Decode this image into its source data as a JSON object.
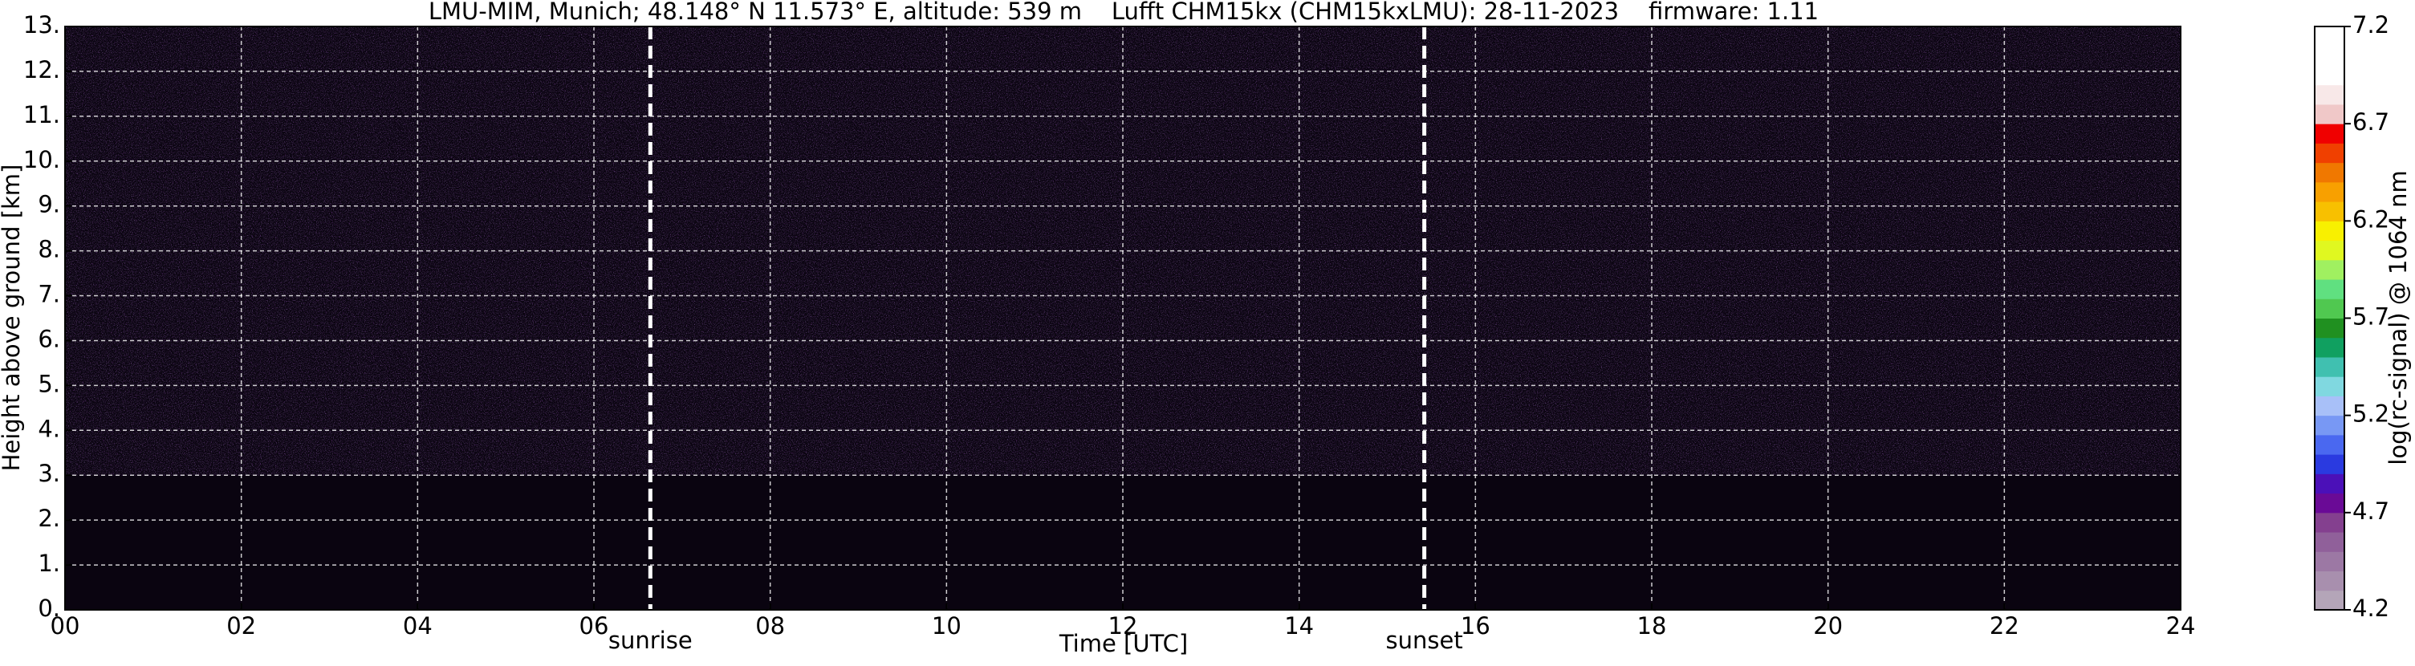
{
  "chart_data": {
    "type": "heatmap",
    "title": "LMU-MIM, Munich; 48.148° N 11.573° E, altitude: 539 m    Lufft CHM15kx (CHM15kxLMU): 28-11-2023    firmware: 1.11",
    "xlabel": "Time [UTC]",
    "ylabel": "Height above ground [km]",
    "xlim": [
      0,
      24
    ],
    "xticks": [
      {
        "value": 0,
        "label": "00"
      },
      {
        "value": 2,
        "label": "02"
      },
      {
        "value": 4,
        "label": "04"
      },
      {
        "value": 6,
        "label": "06"
      },
      {
        "value": 8,
        "label": "08"
      },
      {
        "value": 10,
        "label": "10"
      },
      {
        "value": 12,
        "label": "12"
      },
      {
        "value": 14,
        "label": "14"
      },
      {
        "value": 16,
        "label": "16"
      },
      {
        "value": 18,
        "label": "18"
      },
      {
        "value": 20,
        "label": "20"
      },
      {
        "value": 22,
        "label": "22"
      },
      {
        "value": 24,
        "label": "24"
      }
    ],
    "ylim": [
      0,
      13
    ],
    "yticks": [
      {
        "value": 0,
        "label": "0."
      },
      {
        "value": 1,
        "label": "1."
      },
      {
        "value": 2,
        "label": "2."
      },
      {
        "value": 3,
        "label": "3."
      },
      {
        "value": 4,
        "label": "4."
      },
      {
        "value": 5,
        "label": "5."
      },
      {
        "value": 6,
        "label": "6."
      },
      {
        "value": 7,
        "label": "7."
      },
      {
        "value": 8,
        "label": "8."
      },
      {
        "value": 9,
        "label": "9."
      },
      {
        "value": 10,
        "label": "10."
      },
      {
        "value": 11,
        "label": "11."
      },
      {
        "value": 12,
        "label": "12."
      },
      {
        "value": 13,
        "label": "13."
      }
    ],
    "grid": true,
    "annotations": [
      {
        "text": "sunrise",
        "x": 6.64
      },
      {
        "text": "sunset",
        "x": 15.42
      }
    ],
    "colorbar": {
      "label": "log(rc-signal) @ 1064 nm",
      "clim": [
        4.2,
        7.2
      ],
      "ticks": [
        4.2,
        4.7,
        5.2,
        5.7,
        6.2,
        6.7,
        7.2
      ],
      "colors": [
        "#b4a5b8",
        "#a88fae",
        "#9c78a4",
        "#90609a",
        "#84408f",
        "#6a0a96",
        "#4b10b8",
        "#2a3ae0",
        "#4a68f0",
        "#7898f4",
        "#a8c0f8",
        "#80d8e0",
        "#40c0b0",
        "#10a060",
        "#209020",
        "#50c850",
        "#60e080",
        "#a0f060",
        "#e0f820",
        "#f8f000",
        "#f8c000",
        "#f8a000",
        "#f07800",
        "#f04000",
        "#f00000",
        "#f0c8c8",
        "#f8e8e8",
        "#ffffff",
        "#ffffff",
        "#ffffff"
      ]
    }
  }
}
